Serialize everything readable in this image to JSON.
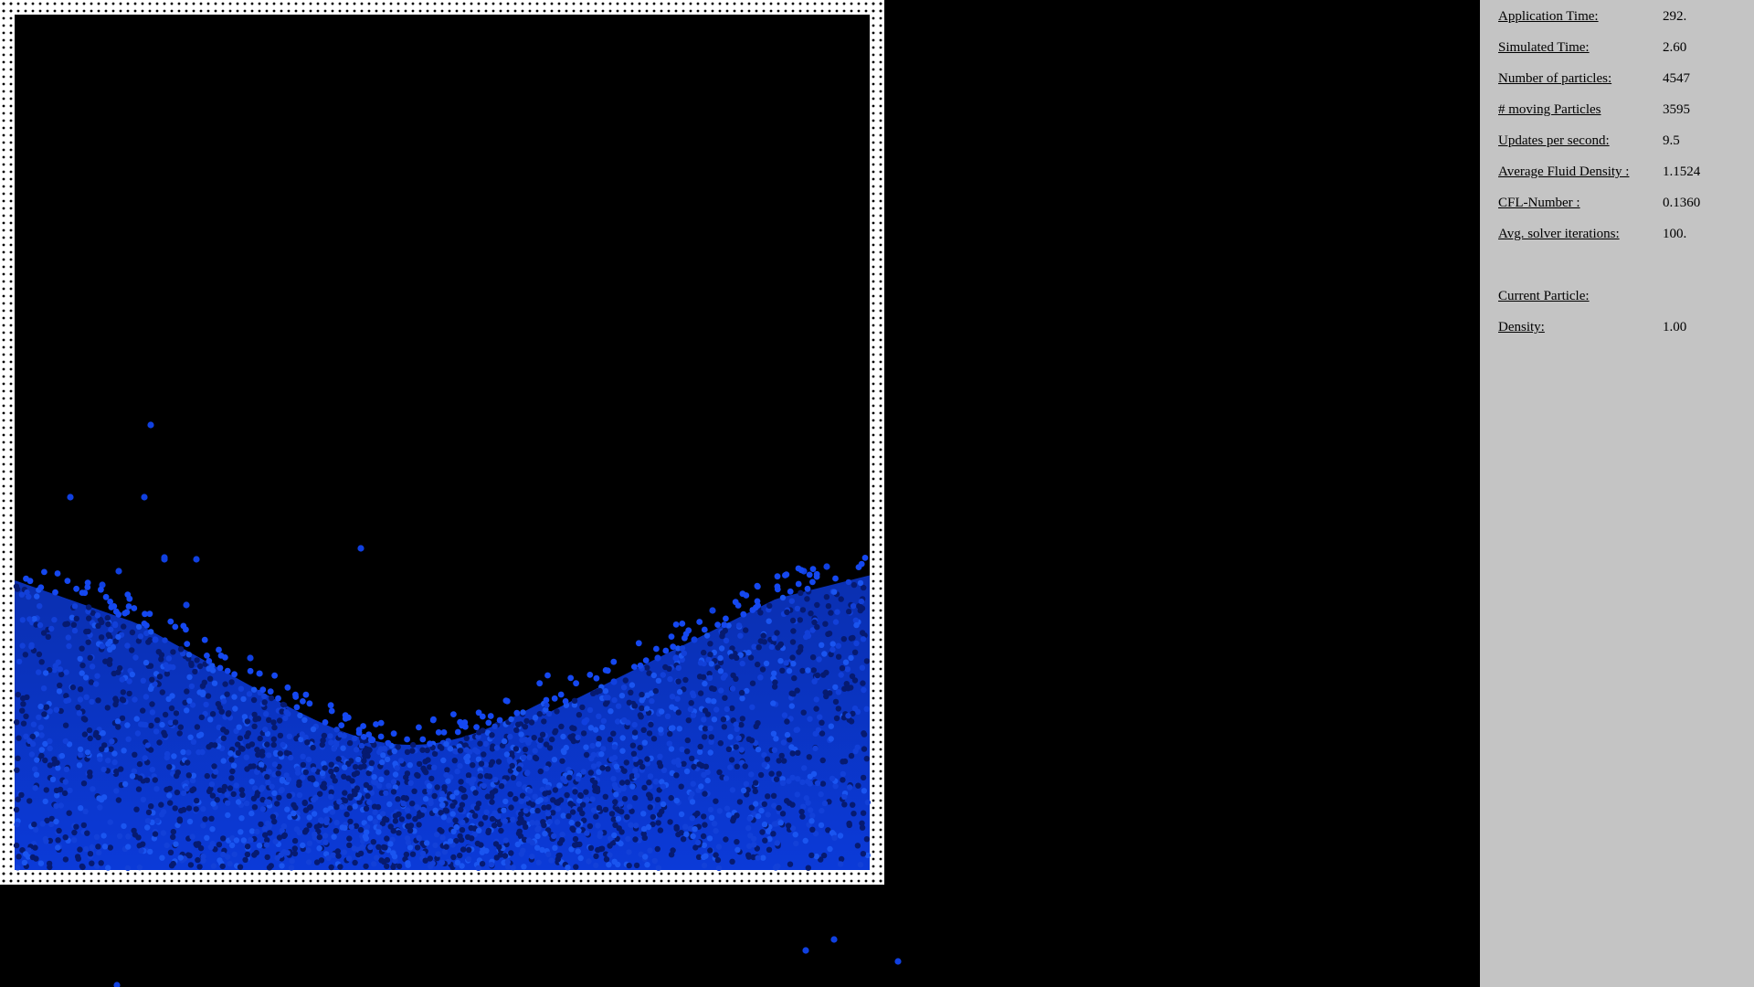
{
  "simulation": {
    "wall_color": "#ffffff",
    "fluid_color": "#1040e0",
    "background_color": "#000000"
  },
  "stats": [
    {
      "label": "Application Time:",
      "value": "292."
    },
    {
      "label": "Simulated Time:",
      "value": "2.60"
    },
    {
      "label": "Number of particles:",
      "value": "4547"
    },
    {
      "label": "# moving Particles",
      "value": "3595"
    },
    {
      "label": "Updates per second:",
      "value": "9.5"
    },
    {
      "label": "Average Fluid Density :",
      "value": "1.1524"
    },
    {
      "label": "CFL-Number :",
      "value": "0.1360"
    },
    {
      "label": "Avg. solver iterations:",
      "value": "100."
    }
  ],
  "current_particle": {
    "heading": "Current Particle:",
    "density_label": "Density:",
    "density_value": "1.00"
  }
}
